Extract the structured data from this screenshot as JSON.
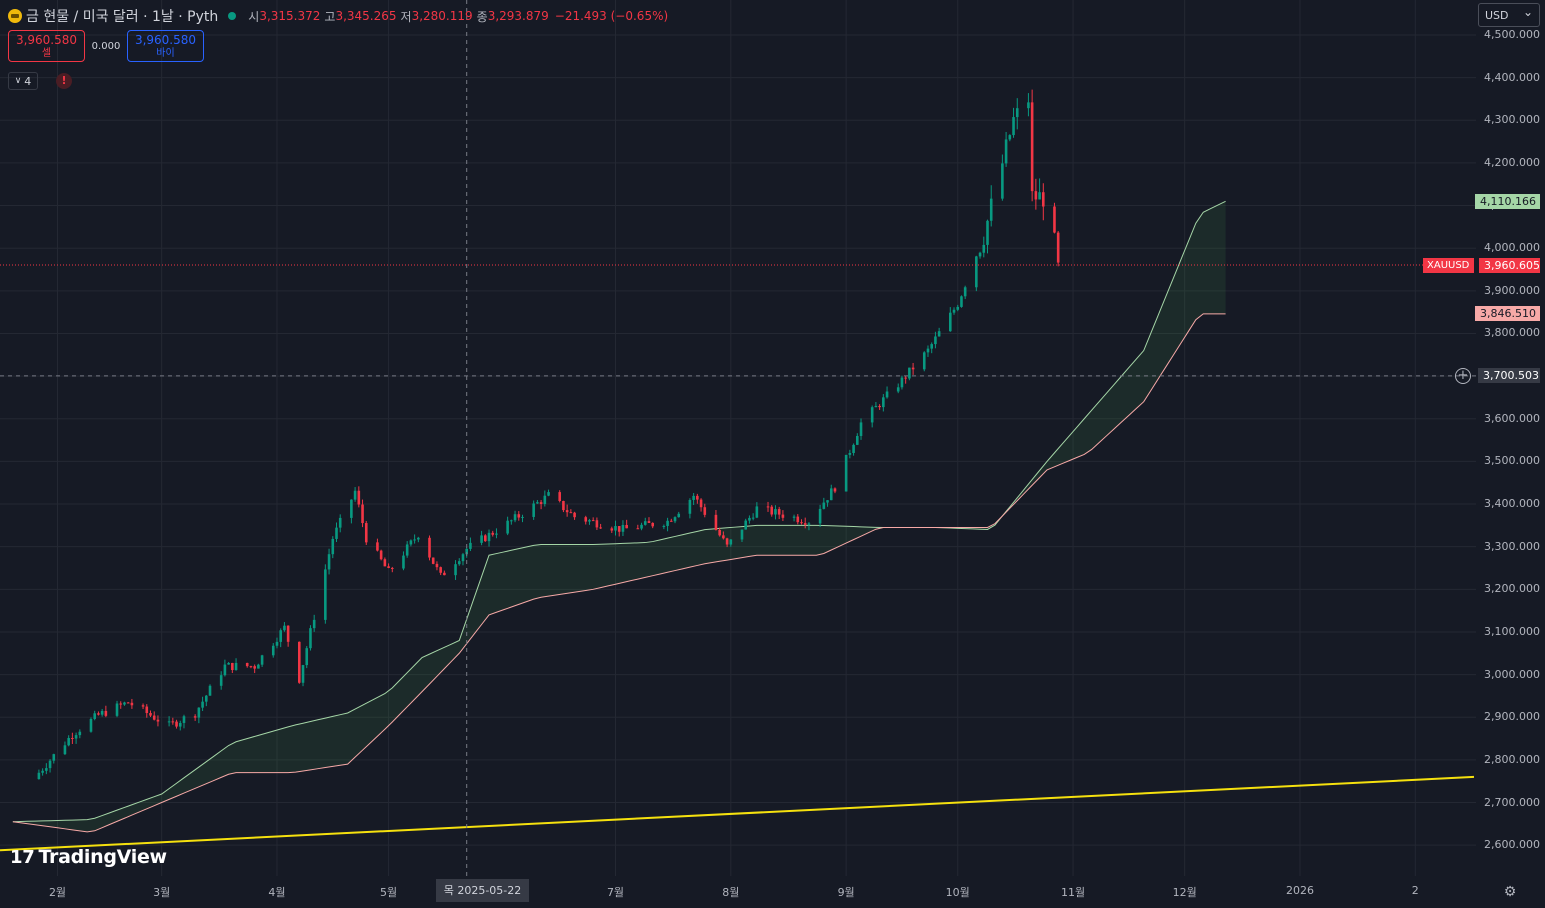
{
  "header": {
    "title": "금 현물 / 미국 달러 · 1날 · Pyth",
    "ohlc": [
      {
        "label": "시",
        "value": "3,315.372"
      },
      {
        "label": "고",
        "value": "3,345.265"
      },
      {
        "label": "저",
        "value": "3,280.119"
      },
      {
        "label": "종",
        "value": "3,293.879"
      }
    ],
    "change": "−21.493 (−0.65%)"
  },
  "trade": {
    "sell_price": "3,960.580",
    "sell_label": "셀",
    "spread": "0.000",
    "buy_price": "3,960.580",
    "buy_label": "바이"
  },
  "indicators": {
    "count": "4",
    "alert_icon": "!"
  },
  "currency": "USD",
  "badges": {
    "green": "4,110.166",
    "symbol": "XAUUSD",
    "price": "3,960.605",
    "pink": "3,846.510",
    "crosshair": "3,700.503"
  },
  "crosshair_date": "목 2025-05-22",
  "logo": "TradingView",
  "colors": {
    "background": "#161a25",
    "up": "#089981",
    "down": "#f23645",
    "cloud_a": "#a5d6a7",
    "cloud_b": "#f7a9a7",
    "trendline": "#f5e10e"
  },
  "chart_data": {
    "type": "candlestick",
    "symbol": "XAUUSD",
    "timeframe": "1D",
    "y_ticks": [
      "4,500.000",
      "4,400.000",
      "4,300.000",
      "4,200.000",
      "4,100.000",
      "4,000.000",
      "3,900.000",
      "3,800.000",
      "3,700.000",
      "3,600.000",
      "3,500.000",
      "3,400.000",
      "3,300.000",
      "3,200.000",
      "3,100.000",
      "3,000.000",
      "2,900.000",
      "2,800.000",
      "2,700.000",
      "2,600.000"
    ],
    "x_ticks": [
      "2월",
      "3월",
      "4월",
      "5월",
      "7월",
      "8월",
      "9월",
      "10월",
      "11월",
      "12월",
      "2026",
      "2"
    ],
    "ylim": [
      2580,
      4520
    ],
    "grid": true,
    "close_anchors": [
      [
        "2025-01-27",
        2770
      ],
      [
        "2025-02-05",
        2860
      ],
      [
        "2025-02-12",
        2905
      ],
      [
        "2025-02-20",
        2935
      ],
      [
        "2025-03-03",
        2880
      ],
      [
        "2025-03-10",
        2910
      ],
      [
        "2025-03-18",
        3020
      ],
      [
        "2025-03-26",
        3020
      ],
      [
        "2025-04-03",
        3110
      ],
      [
        "2025-04-07",
        2990
      ],
      [
        "2025-04-10",
        3100
      ],
      [
        "2025-04-16",
        3320
      ],
      [
        "2025-04-22",
        3430
      ],
      [
        "2025-04-25",
        3320
      ],
      [
        "2025-05-01",
        3240
      ],
      [
        "2025-05-09",
        3330
      ],
      [
        "2025-05-15",
        3230
      ],
      [
        "2025-05-22",
        3295
      ],
      [
        "2025-06-03",
        3360
      ],
      [
        "2025-06-13",
        3420
      ],
      [
        "2025-06-20",
        3370
      ],
      [
        "2025-07-03",
        3340
      ],
      [
        "2025-07-15",
        3360
      ],
      [
        "2025-07-22",
        3420
      ],
      [
        "2025-07-31",
        3300
      ],
      [
        "2025-08-08",
        3390
      ],
      [
        "2025-08-22",
        3360
      ],
      [
        "2025-08-29",
        3440
      ],
      [
        "2025-09-05",
        3590
      ],
      [
        "2025-09-16",
        3690
      ],
      [
        "2025-09-23",
        3760
      ],
      [
        "2025-10-01",
        3870
      ],
      [
        "2025-10-08",
        4030
      ],
      [
        "2025-10-16",
        4300
      ],
      [
        "2025-10-20",
        4350
      ],
      [
        "2025-10-21",
        4120
      ],
      [
        "2025-10-24",
        4120
      ],
      [
        "2025-10-27",
        4010
      ],
      [
        "2025-10-28",
        3960
      ]
    ],
    "cloud_line_a": [
      [
        "2025-01-20",
        2655
      ],
      [
        "2025-02-10",
        2660
      ],
      [
        "2025-03-01",
        2720
      ],
      [
        "2025-03-20",
        2840
      ],
      [
        "2025-04-05",
        2880
      ],
      [
        "2025-04-20",
        2910
      ],
      [
        "2025-05-01",
        2960
      ],
      [
        "2025-05-10",
        3040
      ],
      [
        "2025-05-20",
        3080
      ],
      [
        "2025-05-28",
        3280
      ],
      [
        "2025-06-10",
        3305
      ],
      [
        "2025-06-25",
        3305
      ],
      [
        "2025-07-10",
        3310
      ],
      [
        "2025-07-25",
        3340
      ],
      [
        "2025-08-08",
        3350
      ],
      [
        "2025-08-25",
        3350
      ],
      [
        "2025-09-10",
        3345
      ],
      [
        "2025-09-25",
        3345
      ],
      [
        "2025-10-10",
        3340
      ],
      [
        "2025-10-25",
        3500
      ],
      [
        "2025-11-05",
        3610
      ],
      [
        "2025-11-20",
        3760
      ],
      [
        "2025-12-05",
        4080
      ],
      [
        "2025-12-12",
        4110
      ]
    ],
    "cloud_line_b": [
      [
        "2025-01-20",
        2655
      ],
      [
        "2025-02-10",
        2630
      ],
      [
        "2025-03-01",
        2700
      ],
      [
        "2025-03-20",
        2770
      ],
      [
        "2025-04-05",
        2770
      ],
      [
        "2025-04-20",
        2790
      ],
      [
        "2025-05-01",
        2880
      ],
      [
        "2025-05-10",
        2960
      ],
      [
        "2025-05-20",
        3050
      ],
      [
        "2025-05-28",
        3140
      ],
      [
        "2025-06-10",
        3180
      ],
      [
        "2025-06-25",
        3200
      ],
      [
        "2025-07-10",
        3230
      ],
      [
        "2025-07-25",
        3260
      ],
      [
        "2025-08-08",
        3280
      ],
      [
        "2025-08-25",
        3280
      ],
      [
        "2025-09-10",
        3345
      ],
      [
        "2025-09-25",
        3345
      ],
      [
        "2025-10-10",
        3345
      ],
      [
        "2025-10-25",
        3480
      ],
      [
        "2025-11-05",
        3520
      ],
      [
        "2025-11-20",
        3640
      ],
      [
        "2025-12-05",
        3846
      ],
      [
        "2025-12-12",
        3846
      ]
    ],
    "trendline": [
      [
        "2025-01-15",
        2588
      ],
      [
        "2026-02-05",
        2760
      ]
    ],
    "price_line": 3960.605,
    "crosshair": {
      "date": "2025-05-22",
      "price": 3700.503
    }
  }
}
